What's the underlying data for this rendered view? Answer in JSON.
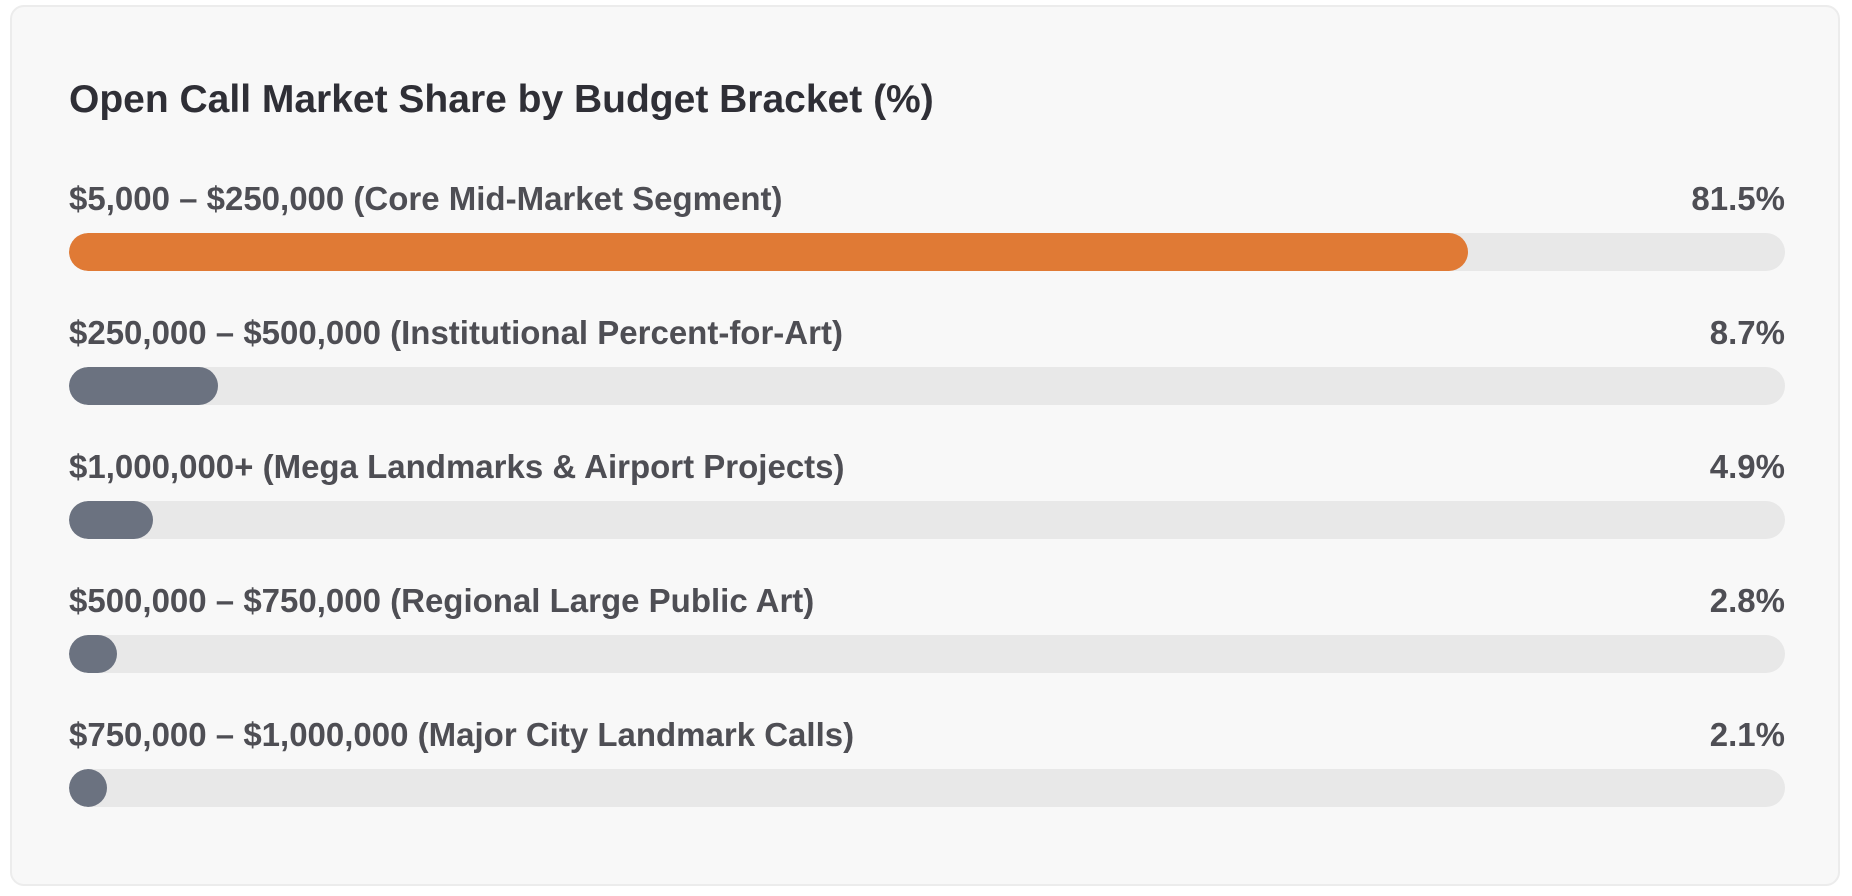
{
  "chart_data": {
    "type": "bar",
    "orientation": "horizontal",
    "title": "Open Call Market Share by Budget Bracket (%)",
    "xlim": [
      0,
      100
    ],
    "categories": [
      "$5,000 – $250,000 (Core Mid-Market Segment)",
      "$250,000 – $500,000 (Institutional Percent-for-Art)",
      "$1,000,000+ (Mega Landmarks & Airport Projects)",
      "$500,000 – $750,000 (Regional Large Public Art)",
      "$750,000 – $1,000,000 (Major City Landmark Calls)"
    ],
    "values": [
      81.5,
      8.7,
      4.9,
      2.8,
      2.1
    ],
    "value_labels": [
      "81.5%",
      "8.7%",
      "4.9%",
      "2.8%",
      "2.1%"
    ],
    "colors": {
      "highlight": "#e07a35",
      "default": "#6b7280",
      "track": "#e8e8e8"
    },
    "grid": false
  }
}
